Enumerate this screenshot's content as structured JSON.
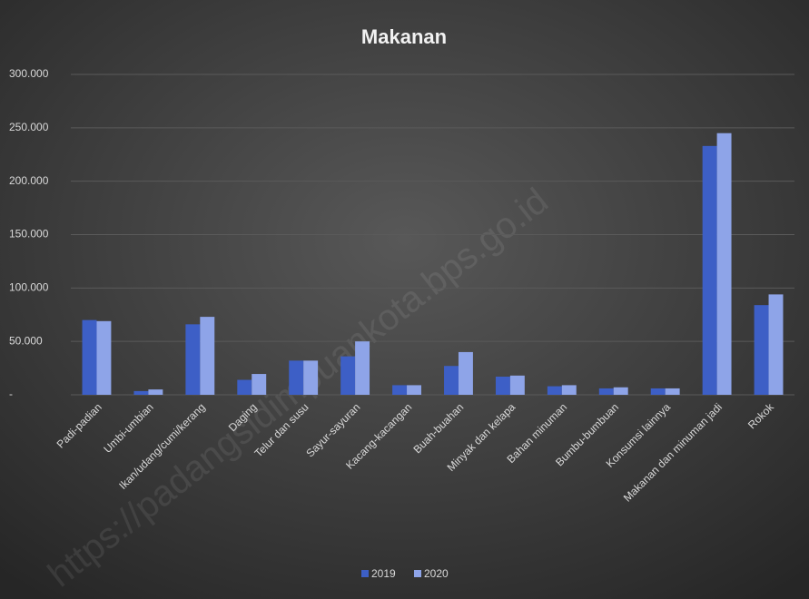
{
  "chart_data": {
    "type": "bar",
    "title": "Makanan",
    "watermark": "https://padangsidimpuankota.bps.go.id",
    "categories": [
      "Padi-padian",
      "Umbi-umbian",
      "Ikan/udang/cumi/kerang",
      "Daging",
      "Telur dan susu",
      "Sayur-sayuran",
      "Kacang-kacangan",
      "Buah-buahan",
      "Minyak dan kelapa",
      "Bahan minuman",
      "Bumbu-bumbuan",
      "Konsumsi lainnya",
      "Makanan dan minuman jadi",
      "Rokok"
    ],
    "series": [
      {
        "name": "2019",
        "color": "#3d5fc6",
        "values": [
          70000,
          3500,
          66000,
          14000,
          32000,
          36000,
          9000,
          27000,
          17000,
          8000,
          6000,
          6000,
          233000,
          84000
        ]
      },
      {
        "name": "2020",
        "color": "#8ea4e8",
        "values": [
          69000,
          5000,
          73000,
          19500,
          32000,
          50000,
          9000,
          40000,
          18000,
          9000,
          7000,
          6000,
          245000,
          94000
        ]
      }
    ],
    "ylim": [
      0,
      300000
    ],
    "yticks": [
      {
        "value": 0,
        "label": "-"
      },
      {
        "value": 50000,
        "label": "50.000"
      },
      {
        "value": 100000,
        "label": "100.000"
      },
      {
        "value": 150000,
        "label": "150.000"
      },
      {
        "value": 200000,
        "label": "200.000"
      },
      {
        "value": 250000,
        "label": "250.000"
      },
      {
        "value": 300000,
        "label": "300.000"
      }
    ],
    "grid": true,
    "legend": "bottom"
  }
}
